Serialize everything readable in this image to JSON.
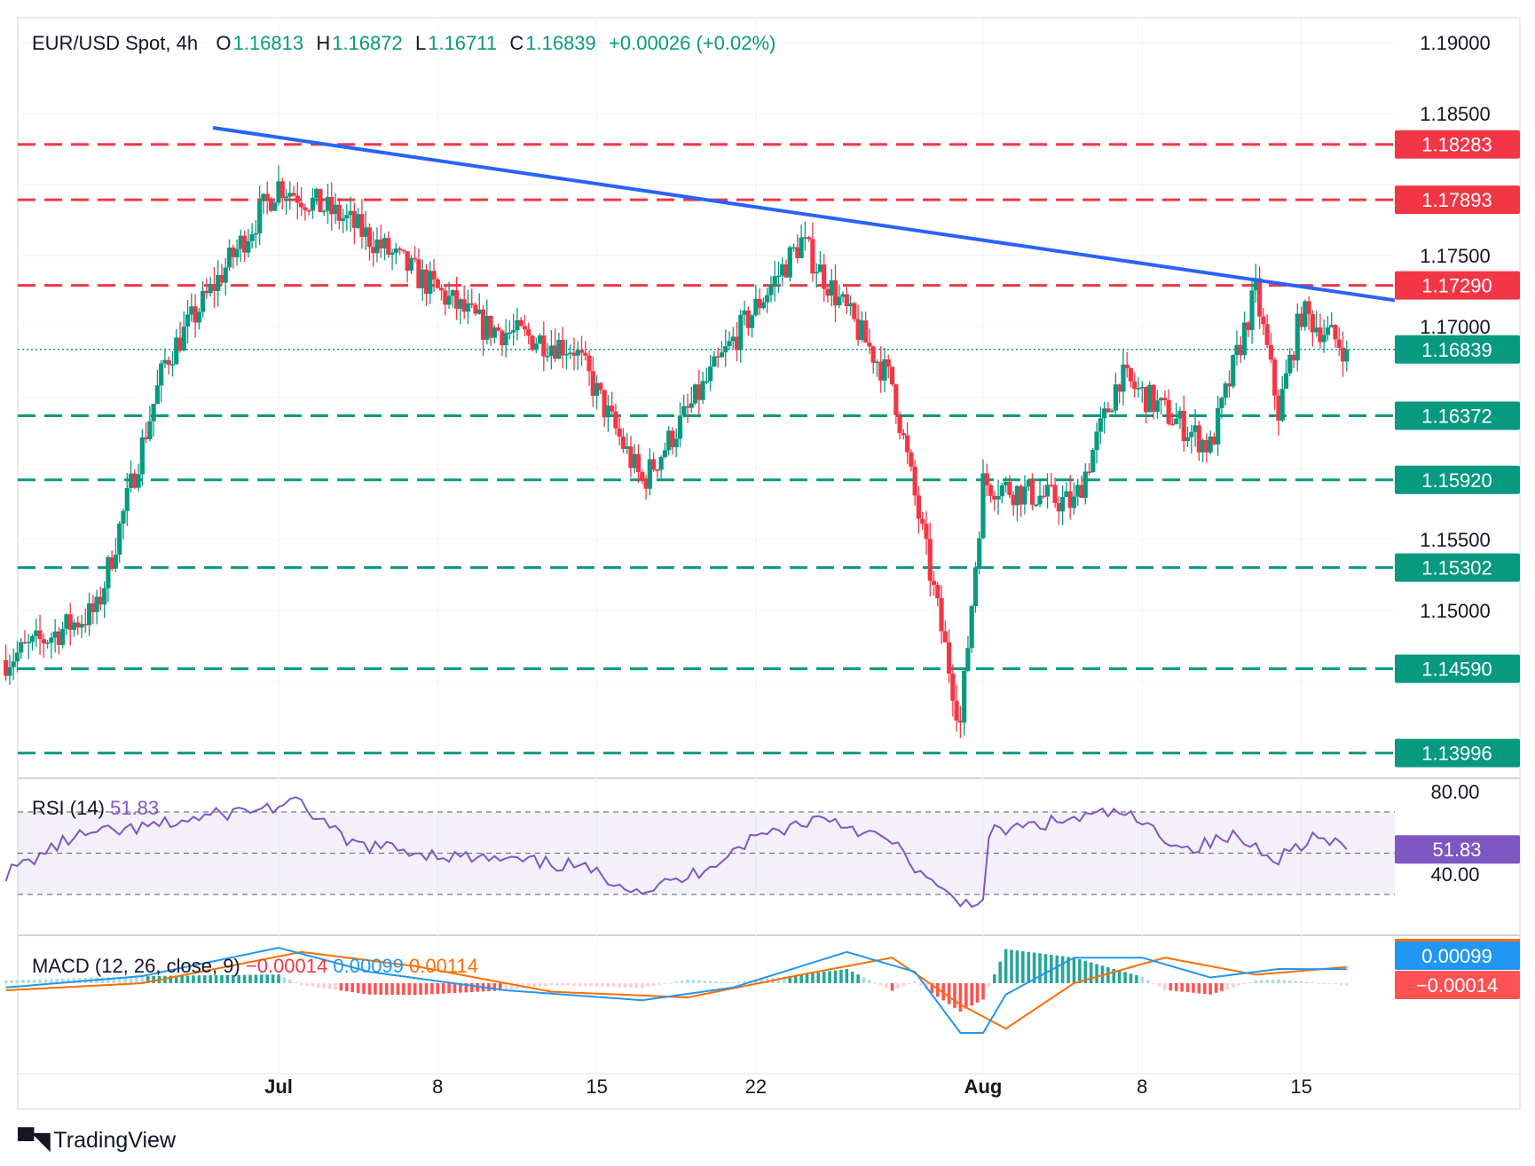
{
  "header": {
    "symbol": "EUR/USD Spot, 4h",
    "open_label": "O",
    "open": "1.16813",
    "high_label": "H",
    "high": "1.16872",
    "low_label": "L",
    "low": "1.16711",
    "close_label": "C",
    "close": "1.16839",
    "change": "+0.00026 (+0.02%)"
  },
  "rsi_pane": {
    "label": "RSI (14)",
    "value": "51.83",
    "badge": "51.83",
    "ticks": [
      "80.00",
      "40.00"
    ]
  },
  "macd_pane": {
    "label": "MACD (12, 26, close, 9)",
    "hist": "−0.00014",
    "macd": "0.00099",
    "signal": "0.00114",
    "badge_macd": "0.00099",
    "badge_hist": "−0.00014"
  },
  "x_axis": [
    "Jul",
    "8",
    "15",
    "22",
    "Aug",
    "8",
    "15"
  ],
  "price_axis": [
    "1.19000",
    "1.18500",
    "1.17500",
    "1.17000",
    "1.15500",
    "1.15000"
  ],
  "level_badges": [
    "1.18283",
    "1.17893",
    "1.17290",
    "1.16839",
    "1.16372",
    "1.15920",
    "1.15302",
    "1.14590",
    "1.13996"
  ],
  "logo": "TradingView",
  "colors": {
    "up": "#089981",
    "down": "#f23645",
    "trend": "#2962ff",
    "rsi": "#7e57c2",
    "macd": "#2196f3",
    "signal": "#ff6d00"
  },
  "chart_data": {
    "type": "candlestick",
    "title": "EUR/USD Spot, 4h",
    "ylim": [
      1.1385,
      1.192
    ],
    "resistance_levels": [
      1.18283,
      1.17893,
      1.1729
    ],
    "support_levels": [
      1.16372,
      1.1592,
      1.15302,
      1.1459,
      1.13996
    ],
    "last_close": 1.16839,
    "trendline": [
      {
        "x": "Jun 27",
        "y": 1.184
      },
      {
        "x": "Aug 17",
        "y": 1.172
      }
    ],
    "key_closes": [
      {
        "x": "Jun 19",
        "close": 1.1465
      },
      {
        "x": "Jun 23",
        "close": 1.15
      },
      {
        "x": "Jun 26",
        "close": 1.1675
      },
      {
        "x": "Jul 1",
        "close": 1.18
      },
      {
        "x": "Jul 4",
        "close": 1.1775
      },
      {
        "x": "Jul 10",
        "close": 1.17
      },
      {
        "x": "Jul 14",
        "close": 1.1685
      },
      {
        "x": "Jul 17",
        "close": 1.159
      },
      {
        "x": "Jul 21",
        "close": 1.169
      },
      {
        "x": "Jul 24",
        "close": 1.176
      },
      {
        "x": "Jul 28",
        "close": 1.166
      },
      {
        "x": "Jul 31",
        "close": 1.142
      },
      {
        "x": "Aug 1",
        "close": 1.159
      },
      {
        "x": "Aug 5",
        "close": 1.1575
      },
      {
        "x": "Aug 7",
        "close": 1.1665
      },
      {
        "x": "Aug 11",
        "close": 1.1615
      },
      {
        "x": "Aug 13",
        "close": 1.1725
      },
      {
        "x": "Aug 14",
        "close": 1.164
      },
      {
        "x": "Aug 15",
        "close": 1.171
      },
      {
        "x": "Aug 17",
        "close": 1.16839
      }
    ],
    "rsi": {
      "period": 14,
      "last": 51.83,
      "levels": [
        70,
        50,
        30
      ]
    },
    "macd": {
      "fast": 12,
      "slow": 26,
      "signal": 9,
      "macd": 0.00099,
      "signal_value": 0.00114,
      "histogram": -0.00014
    }
  }
}
